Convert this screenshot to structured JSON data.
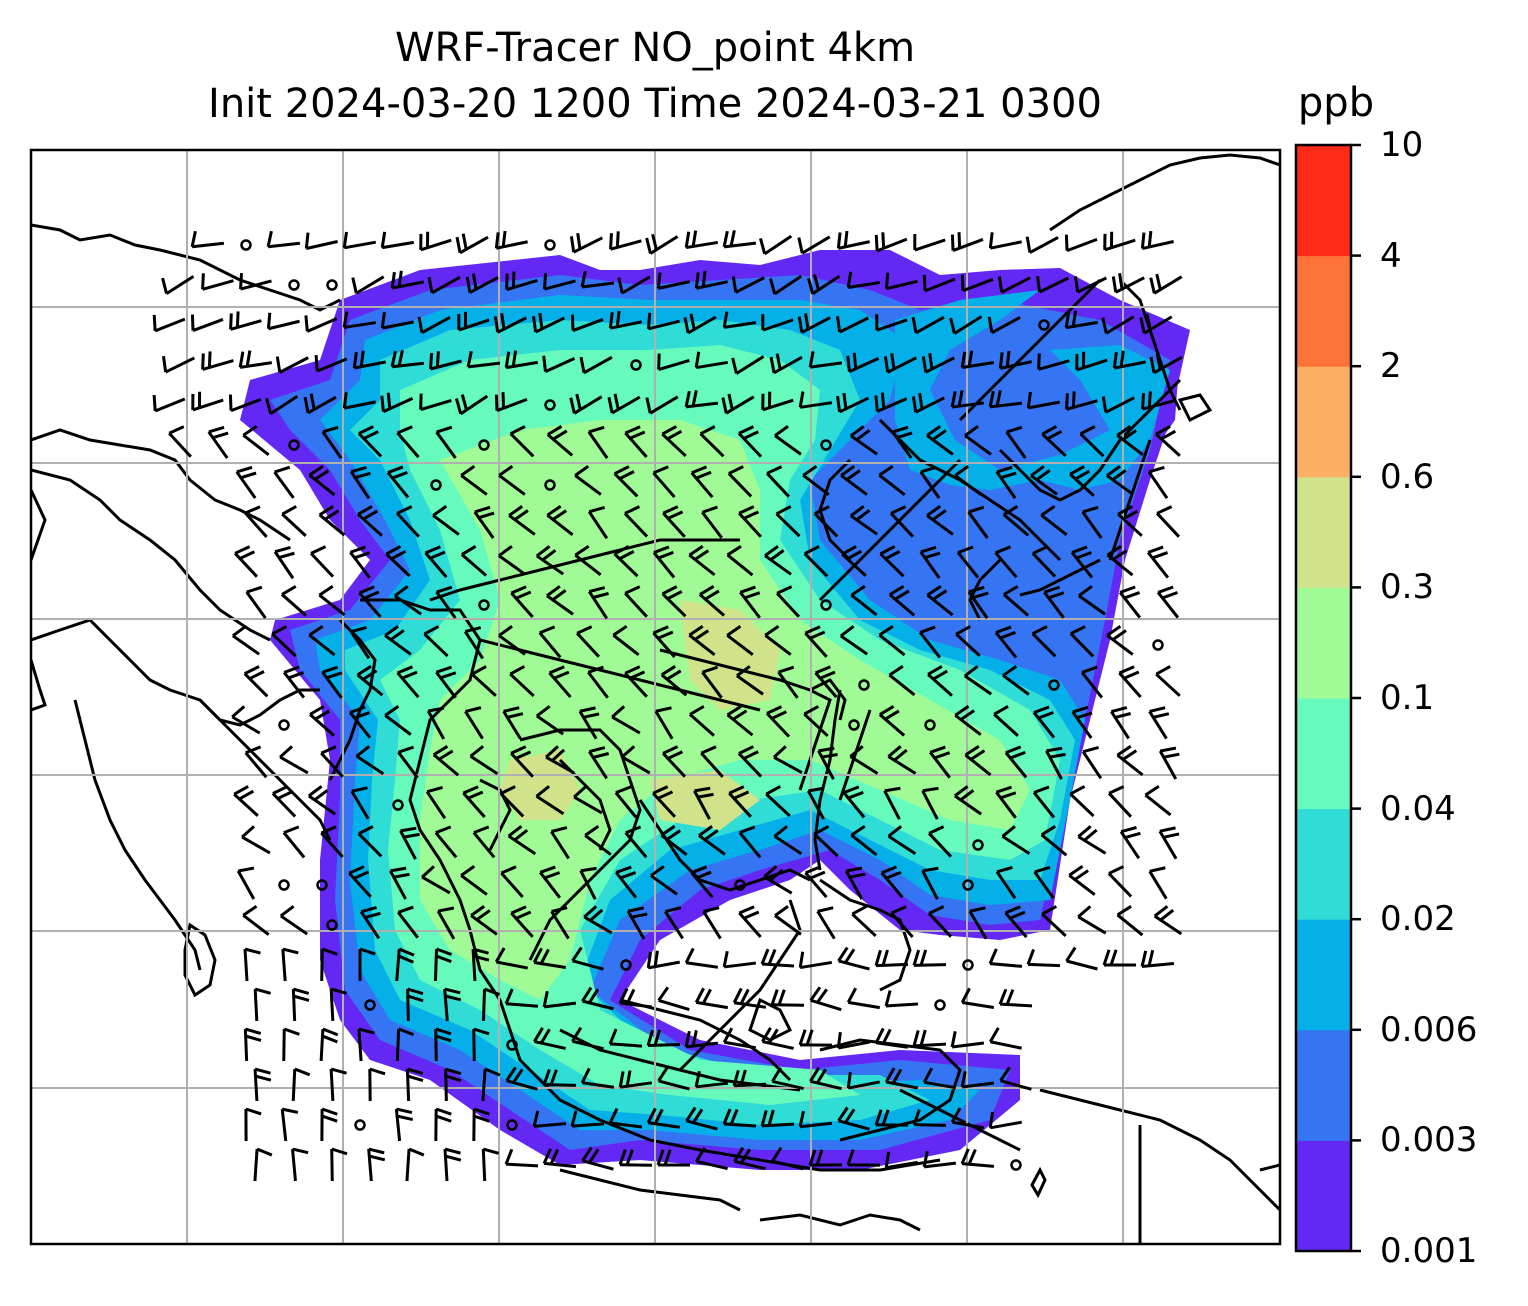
{
  "title": {
    "line1": "WRF-Tracer NO_point 4km",
    "line2": "Init 2024-03-20 1200 Time 2024-03-21 0300"
  },
  "colorbar": {
    "unit": "ppb",
    "levels": [
      "0.001",
      "0.003",
      "0.006",
      "0.02",
      "0.04",
      "0.1",
      "0.3",
      "0.6",
      "2",
      "4",
      "10"
    ],
    "colors": [
      "#6428f5",
      "#3574f2",
      "#05b0e9",
      "#30dcd6",
      "#66fbbd",
      "#a0fb96",
      "#d0e38a",
      "#fdb064",
      "#fd7338",
      "#fd2a18"
    ]
  },
  "map": {
    "field_colors": {
      "outer": "#6428f5",
      "band2": "#3574f2",
      "band3": "#05b0e9",
      "band4": "#30dcd6",
      "band5": "#66fbbd",
      "band6": "#a0fb96",
      "band7": "#d0e38a"
    },
    "gridlines": "on",
    "gridline_color": "#b0b0b0"
  }
}
